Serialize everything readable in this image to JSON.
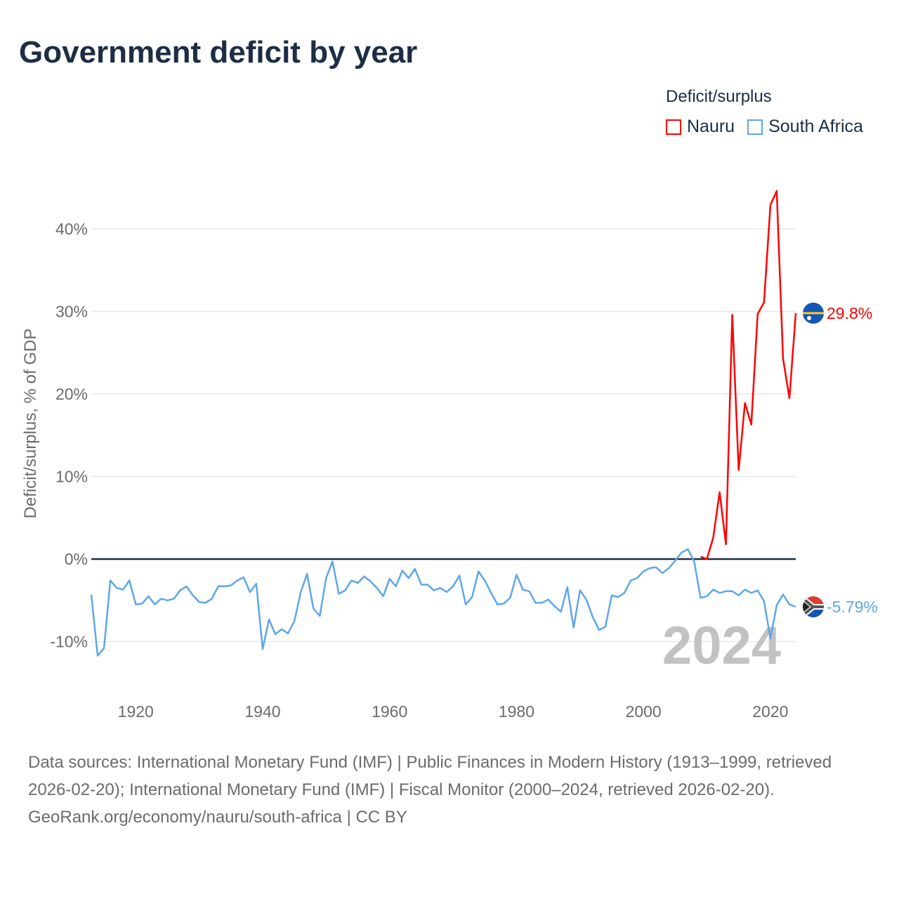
{
  "title": "Government deficit by year",
  "legend": {
    "title": "Deficit/surplus",
    "items": [
      {
        "name": "Nauru",
        "color": "#ff0000"
      },
      {
        "name": "South Africa",
        "color": "#5ea6ec"
      }
    ]
  },
  "year_watermark": "2024",
  "footer": {
    "sources": "Data sources: International Monetary Fund (IMF) | Public Finances in Modern History (1913–1999, retrieved 2026-02-20); International Monetary Fund (IMF) | Fiscal Monitor (2000–2024, retrieved 2026-02-20).",
    "credit": "GeoRank.org/economy/nauru/south-africa | CC BY"
  },
  "chart_data": {
    "type": "line",
    "title": "Government deficit by year",
    "xlabel": "",
    "ylabel": "Deficit/surplus, % of GDP",
    "xlim": [
      1913,
      2024
    ],
    "ylim": [
      -14,
      48
    ],
    "x_ticks": [
      {
        "value": 1920,
        "label": "1920"
      },
      {
        "value": 1940,
        "label": "1940"
      },
      {
        "value": 1960,
        "label": "1960"
      },
      {
        "value": 1980,
        "label": "1980"
      },
      {
        "value": 2000,
        "label": "2000"
      },
      {
        "value": 2020,
        "label": "2020"
      }
    ],
    "y_ticks": [
      {
        "value": -10,
        "label": "-10%"
      },
      {
        "value": 0,
        "label": "0%"
      },
      {
        "value": 10,
        "label": "10%"
      },
      {
        "value": 20,
        "label": "20%"
      },
      {
        "value": 30,
        "label": "30%"
      },
      {
        "value": 40,
        "label": "40%"
      }
    ],
    "grid": true,
    "legend_position": "top-right",
    "series": [
      {
        "name": "Nauru",
        "color": "#ff0000",
        "end_label": "29.8%",
        "start_year": 2009,
        "values": [
          0.3,
          0.0,
          2.6,
          8.1,
          1.8,
          29.6,
          10.8,
          18.9,
          16.3,
          29.7,
          31.1,
          42.9,
          44.6,
          24.3,
          19.5,
          29.8
        ]
      },
      {
        "name": "South Africa",
        "color": "#5ea6ec",
        "end_label": "-5.79%",
        "start_year": 1913,
        "values": [
          -4.3,
          -11.7,
          -10.8,
          -2.6,
          -3.5,
          -3.7,
          -2.6,
          -5.5,
          -5.4,
          -4.5,
          -5.5,
          -4.8,
          -5.0,
          -4.8,
          -3.8,
          -3.3,
          -4.4,
          -5.2,
          -5.3,
          -4.8,
          -3.3,
          -3.3,
          -3.2,
          -2.6,
          -2.2,
          -4.0,
          -3.0,
          -10.9,
          -7.3,
          -9.1,
          -8.5,
          -9.0,
          -7.5,
          -4.0,
          -1.8,
          -6.0,
          -6.9,
          -2.3,
          -0.3,
          -4.2,
          -3.8,
          -2.6,
          -2.9,
          -2.1,
          -2.7,
          -3.5,
          -4.5,
          -2.4,
          -3.3,
          -1.4,
          -2.3,
          -1.2,
          -3.1,
          -3.1,
          -3.8,
          -3.5,
          -4.0,
          -3.3,
          -2.0,
          -5.5,
          -4.6,
          -1.5,
          -2.6,
          -4.1,
          -5.5,
          -5.4,
          -4.7,
          -1.9,
          -3.7,
          -3.9,
          -5.3,
          -5.3,
          -4.9,
          -5.7,
          -6.4,
          -3.4,
          -8.3,
          -3.8,
          -4.9,
          -7.0,
          -8.6,
          -8.2,
          -4.4,
          -4.6,
          -4.1,
          -2.6,
          -2.3,
          -1.5,
          -1.1,
          -1.0,
          -1.7,
          -1.1,
          -0.2,
          0.8,
          1.2,
          -0.3,
          -4.7,
          -4.5,
          -3.7,
          -4.1,
          -3.9,
          -3.9,
          -4.4,
          -3.7,
          -4.1,
          -3.8,
          -5.1,
          -9.6,
          -5.6,
          -4.3,
          -5.5,
          -5.79
        ]
      }
    ]
  }
}
